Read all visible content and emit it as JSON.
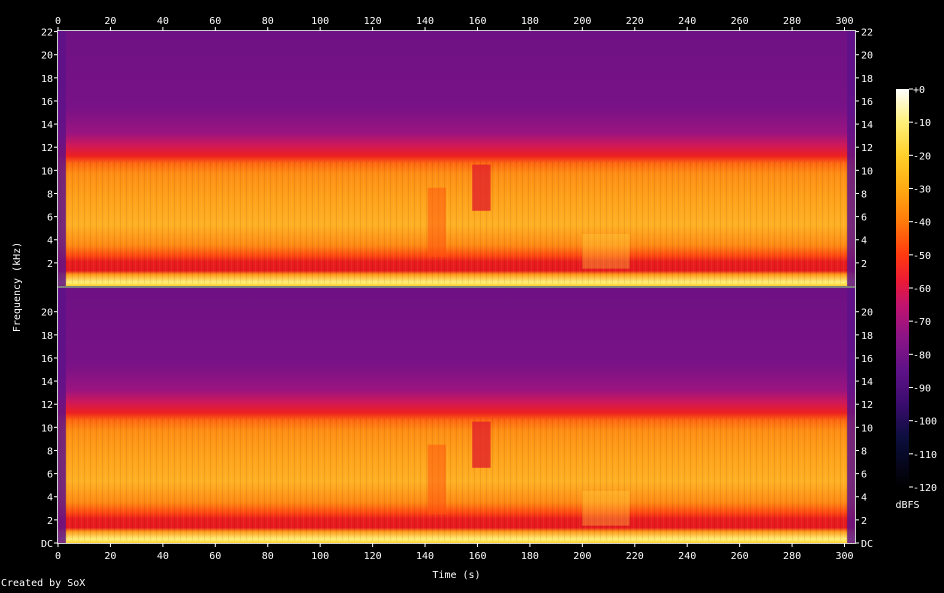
{
  "footer": {
    "credit": "Created by SoX"
  },
  "chart_data": {
    "type": "heatmap",
    "title": "",
    "xlabel": "Time (s)",
    "ylabel": "Frequency (kHz)",
    "colorbar_label": "dBFS",
    "xlim": [
      0,
      304
    ],
    "ylim_khz": [
      0,
      22.05
    ],
    "x_ticks": [
      0,
      20,
      40,
      60,
      80,
      100,
      120,
      140,
      160,
      180,
      200,
      220,
      240,
      260,
      280,
      300
    ],
    "y_ticks_khz": [
      0,
      2,
      4,
      6,
      8,
      10,
      12,
      14,
      16,
      18,
      20,
      22
    ],
    "y_tick_labels_top_channel": [
      "2",
      "4",
      "6",
      "8",
      "10",
      "12",
      "14",
      "16",
      "18",
      "20",
      "22"
    ],
    "y_tick_labels_bottom_channel": [
      "DC",
      "2",
      "4",
      "6",
      "8",
      "10",
      "12",
      "14",
      "16",
      "18",
      "20"
    ],
    "colorbar_range_db": [
      -120,
      0
    ],
    "colorbar_ticks": [
      "+0",
      "-10",
      "-20",
      "-30",
      "-40",
      "-50",
      "-60",
      "-70",
      "-80",
      "-90",
      "-100",
      "-110",
      "-120"
    ],
    "colorbar_stops": [
      {
        "db": -120,
        "color": "#000000"
      },
      {
        "db": -105,
        "color": "#0c0e3e"
      },
      {
        "db": -95,
        "color": "#3a0c6e"
      },
      {
        "db": -85,
        "color": "#5e1288"
      },
      {
        "db": -75,
        "color": "#8a1486"
      },
      {
        "db": -65,
        "color": "#c2136e"
      },
      {
        "db": -58,
        "color": "#ea1a36"
      },
      {
        "db": -50,
        "color": "#ff3a10"
      },
      {
        "db": -40,
        "color": "#ff7a0a"
      },
      {
        "db": -30,
        "color": "#ffaa12"
      },
      {
        "db": -20,
        "color": "#ffd02a"
      },
      {
        "db": -10,
        "color": "#fff07a"
      },
      {
        "db": 0,
        "color": "#ffffff"
      }
    ],
    "channels": 2,
    "content_band_approx_db": [
      {
        "range_khz": [
          10.8,
          22.05
        ],
        "db": -80
      },
      {
        "range_khz": [
          9.5,
          10.8
        ],
        "db": -56
      },
      {
        "range_khz": [
          2.2,
          9.5
        ],
        "db": -36
      },
      {
        "range_khz": [
          1.2,
          2.2
        ],
        "db": -55
      },
      {
        "range_khz": [
          0,
          1.2
        ],
        "db": -22
      }
    ],
    "grid": false,
    "legend": "colorbar-right"
  }
}
